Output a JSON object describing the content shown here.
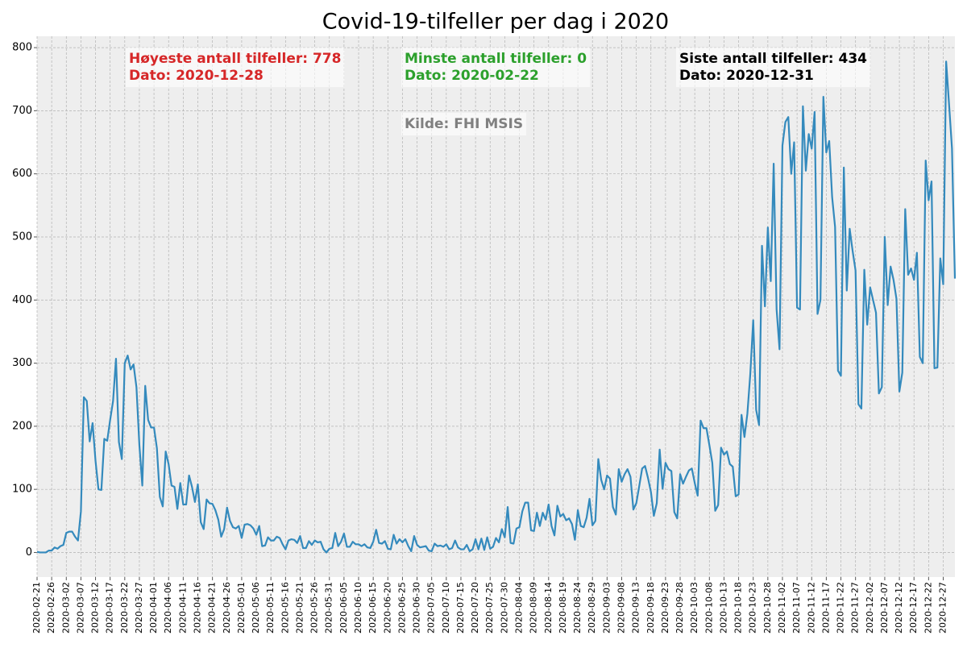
{
  "chart_data": {
    "type": "line",
    "title": "Covid-19-tilfeller per dag i 2020",
    "x": [
      "2020-02-21",
      "2020-02-22",
      "2020-02-23",
      "2020-02-24",
      "2020-02-25",
      "2020-02-26",
      "2020-02-27",
      "2020-02-28",
      "2020-02-29",
      "2020-03-01",
      "2020-03-02",
      "2020-03-03",
      "2020-03-04",
      "2020-03-05",
      "2020-03-06",
      "2020-03-07",
      "2020-03-08",
      "2020-03-09",
      "2020-03-10",
      "2020-03-11",
      "2020-03-12",
      "2020-03-13",
      "2020-03-14",
      "2020-03-15",
      "2020-03-16",
      "2020-03-17",
      "2020-03-18",
      "2020-03-19",
      "2020-03-20",
      "2020-03-21",
      "2020-03-22",
      "2020-03-23",
      "2020-03-24",
      "2020-03-25",
      "2020-03-26",
      "2020-03-27",
      "2020-03-28",
      "2020-03-29",
      "2020-03-30",
      "2020-03-31",
      "2020-04-01",
      "2020-04-02",
      "2020-04-03",
      "2020-04-04",
      "2020-04-05",
      "2020-04-06",
      "2020-04-07",
      "2020-04-08",
      "2020-04-09",
      "2020-04-10",
      "2020-04-11",
      "2020-04-12",
      "2020-04-13",
      "2020-04-14",
      "2020-04-15",
      "2020-04-16",
      "2020-04-17",
      "2020-04-18",
      "2020-04-19",
      "2020-04-20",
      "2020-04-21",
      "2020-04-22",
      "2020-04-23",
      "2020-04-24",
      "2020-04-25",
      "2020-04-26",
      "2020-04-27",
      "2020-04-28",
      "2020-04-29",
      "2020-04-30",
      "2020-05-01",
      "2020-05-02",
      "2020-05-03",
      "2020-05-04",
      "2020-05-05",
      "2020-05-06",
      "2020-05-07",
      "2020-05-08",
      "2020-05-09",
      "2020-05-10",
      "2020-05-11",
      "2020-05-12",
      "2020-05-13",
      "2020-05-14",
      "2020-05-15",
      "2020-05-16",
      "2020-05-17",
      "2020-05-18",
      "2020-05-19",
      "2020-05-20",
      "2020-05-21",
      "2020-05-22",
      "2020-05-23",
      "2020-05-24",
      "2020-05-25",
      "2020-05-26",
      "2020-05-27",
      "2020-05-28",
      "2020-05-29",
      "2020-05-30",
      "2020-05-31",
      "2020-06-01",
      "2020-06-02",
      "2020-06-03",
      "2020-06-04",
      "2020-06-05",
      "2020-06-06",
      "2020-06-07",
      "2020-06-08",
      "2020-06-09",
      "2020-06-10",
      "2020-06-11",
      "2020-06-12",
      "2020-06-13",
      "2020-06-14",
      "2020-06-15",
      "2020-06-16",
      "2020-06-17",
      "2020-06-18",
      "2020-06-19",
      "2020-06-20",
      "2020-06-21",
      "2020-06-22",
      "2020-06-23",
      "2020-06-24",
      "2020-06-25",
      "2020-06-26",
      "2020-06-27",
      "2020-06-28",
      "2020-06-29",
      "2020-06-30",
      "2020-07-01",
      "2020-07-02",
      "2020-07-03",
      "2020-07-04",
      "2020-07-05",
      "2020-07-06",
      "2020-07-07",
      "2020-07-08",
      "2020-07-09",
      "2020-07-10",
      "2020-07-11",
      "2020-07-12",
      "2020-07-13",
      "2020-07-14",
      "2020-07-15",
      "2020-07-16",
      "2020-07-17",
      "2020-07-18",
      "2020-07-19",
      "2020-07-20",
      "2020-07-21",
      "2020-07-22",
      "2020-07-23",
      "2020-07-24",
      "2020-07-25",
      "2020-07-26",
      "2020-07-27",
      "2020-07-28",
      "2020-07-29",
      "2020-07-30",
      "2020-07-31",
      "2020-08-01",
      "2020-08-02",
      "2020-08-03",
      "2020-08-04",
      "2020-08-05",
      "2020-08-06",
      "2020-08-07",
      "2020-08-08",
      "2020-08-09",
      "2020-08-10",
      "2020-08-11",
      "2020-08-12",
      "2020-08-13",
      "2020-08-14",
      "2020-08-15",
      "2020-08-16",
      "2020-08-17",
      "2020-08-18",
      "2020-08-19",
      "2020-08-20",
      "2020-08-21",
      "2020-08-22",
      "2020-08-23",
      "2020-08-24",
      "2020-08-25",
      "2020-08-26",
      "2020-08-27",
      "2020-08-28",
      "2020-08-29",
      "2020-08-30",
      "2020-08-31",
      "2020-09-01",
      "2020-09-02",
      "2020-09-03",
      "2020-09-04",
      "2020-09-05",
      "2020-09-06",
      "2020-09-07",
      "2020-09-08",
      "2020-09-09",
      "2020-09-10",
      "2020-09-11",
      "2020-09-12",
      "2020-09-13",
      "2020-09-14",
      "2020-09-15",
      "2020-09-16",
      "2020-09-17",
      "2020-09-18",
      "2020-09-19",
      "2020-09-20",
      "2020-09-21",
      "2020-09-22",
      "2020-09-23",
      "2020-09-24",
      "2020-09-25",
      "2020-09-26",
      "2020-09-27",
      "2020-09-28",
      "2020-09-29",
      "2020-09-30",
      "2020-10-01",
      "2020-10-02",
      "2020-10-03",
      "2020-10-04",
      "2020-10-05",
      "2020-10-06",
      "2020-10-07",
      "2020-10-08",
      "2020-10-09",
      "2020-10-10",
      "2020-10-11",
      "2020-10-12",
      "2020-10-13",
      "2020-10-14",
      "2020-10-15",
      "2020-10-16",
      "2020-10-17",
      "2020-10-18",
      "2020-10-19",
      "2020-10-20",
      "2020-10-21",
      "2020-10-22",
      "2020-10-23",
      "2020-10-24",
      "2020-10-25",
      "2020-10-26",
      "2020-10-27",
      "2020-10-28",
      "2020-10-29",
      "2020-10-30",
      "2020-10-31",
      "2020-11-01",
      "2020-11-02",
      "2020-11-03",
      "2020-11-04",
      "2020-11-05",
      "2020-11-06",
      "2020-11-07",
      "2020-11-08",
      "2020-11-09",
      "2020-11-10",
      "2020-11-11",
      "2020-11-12",
      "2020-11-13",
      "2020-11-14",
      "2020-11-15",
      "2020-11-16",
      "2020-11-17",
      "2020-11-18",
      "2020-11-19",
      "2020-11-20",
      "2020-11-21",
      "2020-11-22",
      "2020-11-23",
      "2020-11-24",
      "2020-11-25",
      "2020-11-26",
      "2020-11-27",
      "2020-11-28",
      "2020-11-29",
      "2020-11-30",
      "2020-12-01",
      "2020-12-02",
      "2020-12-03",
      "2020-12-04",
      "2020-12-05",
      "2020-12-06",
      "2020-12-07",
      "2020-12-08",
      "2020-12-09",
      "2020-12-10",
      "2020-12-11",
      "2020-12-12",
      "2020-12-13",
      "2020-12-14",
      "2020-12-15",
      "2020-12-16",
      "2020-12-17",
      "2020-12-18",
      "2020-12-19",
      "2020-12-20",
      "2020-12-21",
      "2020-12-22",
      "2020-12-23",
      "2020-12-24",
      "2020-12-25",
      "2020-12-26",
      "2020-12-27",
      "2020-12-28",
      "2020-12-29",
      "2020-12-30",
      "2020-12-31"
    ],
    "values": [
      1,
      0,
      0,
      0,
      3,
      3,
      8,
      6,
      10,
      12,
      31,
      33,
      33,
      25,
      19,
      65,
      246,
      240,
      176,
      205,
      145,
      100,
      99,
      180,
      177,
      210,
      240,
      307,
      175,
      148,
      300,
      312,
      290,
      298,
      262,
      170,
      106,
      264,
      210,
      198,
      198,
      165,
      88,
      73,
      160,
      140,
      106,
      104,
      69,
      110,
      76,
      76,
      122,
      104,
      80,
      108,
      48,
      37,
      84,
      78,
      77,
      67,
      52,
      25,
      37,
      71,
      50,
      40,
      38,
      42,
      23,
      44,
      45,
      43,
      38,
      28,
      42,
      10,
      11,
      24,
      19,
      19,
      25,
      23,
      13,
      5,
      19,
      21,
      20,
      15,
      26,
      7,
      7,
      18,
      12,
      19,
      16,
      17,
      5,
      0,
      6,
      7,
      31,
      10,
      17,
      30,
      9,
      9,
      17,
      13,
      13,
      10,
      13,
      8,
      7,
      17,
      36,
      15,
      14,
      18,
      6,
      5,
      28,
      14,
      21,
      16,
      21,
      10,
      2,
      26,
      12,
      8,
      9,
      10,
      3,
      2,
      14,
      10,
      11,
      9,
      13,
      5,
      7,
      19,
      8,
      5,
      5,
      12,
      2,
      5,
      21,
      5,
      22,
      4,
      24,
      6,
      9,
      23,
      16,
      37,
      24,
      72,
      15,
      14,
      38,
      40,
      65,
      79,
      79,
      35,
      34,
      63,
      42,
      63,
      52,
      76,
      42,
      27,
      74,
      57,
      61,
      51,
      54,
      45,
      20,
      67,
      42,
      40,
      55,
      85,
      43,
      50,
      148,
      115,
      100,
      122,
      117,
      72,
      60,
      132,
      112,
      124,
      132,
      120,
      68,
      78,
      105,
      133,
      137,
      118,
      96,
      58,
      78,
      163,
      101,
      142,
      132,
      129,
      64,
      54,
      124,
      109,
      120,
      130,
      133,
      110,
      90,
      209,
      197,
      197,
      170,
      142,
      66,
      75,
      166,
      155,
      160,
      140,
      136,
      89,
      92,
      218,
      183,
      220,
      283,
      368,
      226,
      202,
      486,
      390,
      515,
      430,
      616,
      385,
      322,
      645,
      682,
      690,
      600,
      650,
      388,
      385,
      707,
      605,
      663,
      640,
      698,
      378,
      400,
      722,
      634,
      652,
      563,
      516,
      288,
      280,
      610,
      415,
      513,
      478,
      447,
      235,
      228,
      448,
      361,
      420,
      400,
      380,
      252,
      262,
      500,
      392,
      453,
      432,
      402,
      255,
      285,
      544,
      440,
      450,
      432,
      475,
      310,
      300,
      621,
      558,
      588,
      292,
      293,
      466,
      425,
      778,
      710,
      640,
      434
    ],
    "color": "#348abd",
    "xlim": [
      "2020-02-21",
      "2020-12-31"
    ],
    "xticks": [
      "2020-02-21",
      "2020-02-26",
      "2020-03-02",
      "2020-03-07",
      "2020-03-12",
      "2020-03-17",
      "2020-03-22",
      "2020-03-27",
      "2020-04-01",
      "2020-04-06",
      "2020-04-11",
      "2020-04-16",
      "2020-04-21",
      "2020-04-26",
      "2020-05-01",
      "2020-05-06",
      "2020-05-11",
      "2020-05-16",
      "2020-05-21",
      "2020-05-26",
      "2020-05-31",
      "2020-06-05",
      "2020-06-10",
      "2020-06-15",
      "2020-06-20",
      "2020-06-25",
      "2020-06-30",
      "2020-07-05",
      "2020-07-10",
      "2020-07-15",
      "2020-07-20",
      "2020-07-25",
      "2020-07-30",
      "2020-08-04",
      "2020-08-09",
      "2020-08-14",
      "2020-08-19",
      "2020-08-24",
      "2020-08-29",
      "2020-09-03",
      "2020-09-08",
      "2020-09-13",
      "2020-09-18",
      "2020-09-23",
      "2020-09-28",
      "2020-10-03",
      "2020-10-08",
      "2020-10-13",
      "2020-10-18",
      "2020-10-23",
      "2020-10-28",
      "2020-11-02",
      "2020-11-07",
      "2020-11-12",
      "2020-11-17",
      "2020-11-22",
      "2020-11-27",
      "2020-12-02",
      "2020-12-07",
      "2020-12-12",
      "2020-12-17",
      "2020-12-22",
      "2020-12-27"
    ],
    "ylim": [
      -39,
      818
    ],
    "yticks": [
      0,
      100,
      200,
      300,
      400,
      500,
      600,
      700,
      800
    ],
    "grid": true,
    "annotations": [
      {
        "lines": [
          "Høyeste antall tilfeller: 778",
          "Dato: 2020-12-28"
        ],
        "color": "#d62728"
      },
      {
        "lines": [
          "Minste antall tilfeller: 0",
          "Dato: 2020-02-22"
        ],
        "color": "#2ca02c"
      },
      {
        "lines": [
          "Siste antall tilfeller: 434",
          "Dato: 2020-12-31"
        ],
        "color": "#000000"
      },
      {
        "lines": [
          "Kilde: FHI MSIS"
        ],
        "color": "#808080"
      }
    ]
  }
}
